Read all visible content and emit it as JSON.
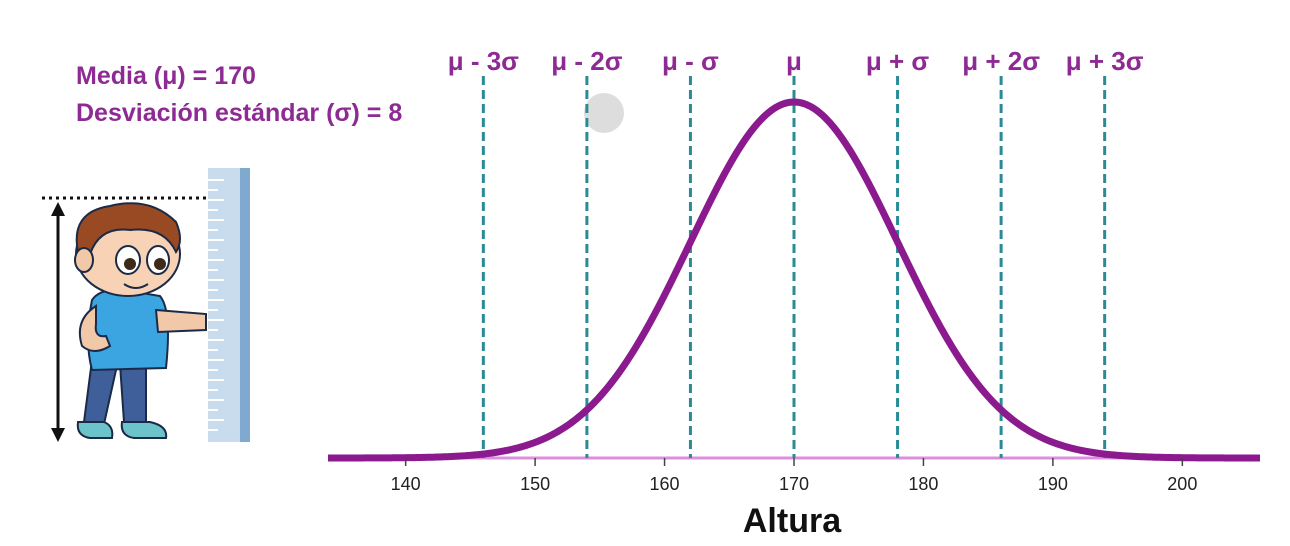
{
  "header": {
    "mean_label": "Media (μ) = 170",
    "sd_label": "Desviación estándar (σ) = 8"
  },
  "icons": [
    "boy-cartoon-icon",
    "height-ruler-icon",
    "height-arrow-icon",
    "cursor-dot-icon"
  ],
  "colors": {
    "curve": "#8b1a8f",
    "sigma_lines": "#2a8b95",
    "labels": "#8e2a93",
    "baseline": "#d98fdc"
  },
  "chart_data": {
    "type": "line",
    "title": "",
    "xlabel": "Altura",
    "ylabel": "",
    "mean": 170,
    "sd": 8,
    "xlim": [
      134,
      206
    ],
    "xticks": [
      140,
      150,
      160,
      170,
      180,
      190,
      200
    ],
    "x_tick_labels": [
      "140",
      "150",
      "160",
      "170",
      "180",
      "190",
      "200"
    ],
    "sigma_lines": [
      {
        "x": 146,
        "label": "μ - 3σ"
      },
      {
        "x": 154,
        "label": "μ - 2σ"
      },
      {
        "x": 162,
        "label": "μ - σ"
      },
      {
        "x": 170,
        "label": "μ"
      },
      {
        "x": 178,
        "label": "μ + σ"
      },
      {
        "x": 186,
        "label": "μ + 2σ"
      },
      {
        "x": 194,
        "label": "μ + 3σ"
      }
    ],
    "series": [
      {
        "curve": "normal density",
        "mean": 170,
        "sd": 8
      }
    ],
    "grid": false,
    "legend": "none"
  }
}
